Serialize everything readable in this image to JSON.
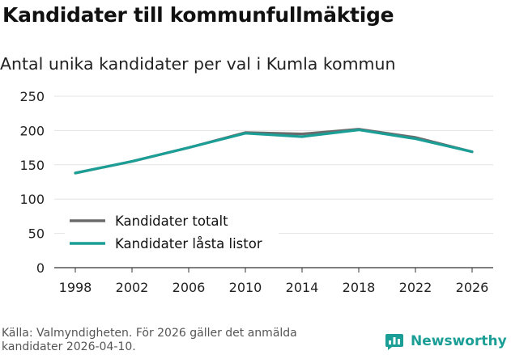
{
  "header": {
    "title": "Kandidater till kommunfullmäktige",
    "subtitle": "Antal unika kandidater per val i Kumla kommun"
  },
  "footer": {
    "source": "Källa: Valmyndigheten. För 2026 gäller det anmälda kandidater 2026-04-10.",
    "brand": "Newsworthy",
    "brand_icon": "bar-chart-logo-icon",
    "brand_color": "#1a9e96"
  },
  "chart_data": {
    "type": "line",
    "title": "Kandidater till kommunfullmäktige",
    "subtitle": "Antal unika kandidater per val i Kumla kommun",
    "xlabel": "",
    "ylabel": "",
    "categories": [
      "1998",
      "2002",
      "2006",
      "2010",
      "2014",
      "2018",
      "2022",
      "2026"
    ],
    "yticks": [
      0,
      50,
      100,
      150,
      200,
      250
    ],
    "ylim": [
      0,
      250
    ],
    "grid": true,
    "legend_position": "bottom-left",
    "series": [
      {
        "name": "Kandidater totalt",
        "color": "#6b6b6b",
        "values": [
          138,
          155,
          175,
          197,
          195,
          202,
          190,
          169
        ]
      },
      {
        "name": "Kandidater låsta listor",
        "color": "#1a9e96",
        "values": [
          138,
          155,
          175,
          196,
          191,
          201,
          188,
          169
        ]
      }
    ]
  }
}
